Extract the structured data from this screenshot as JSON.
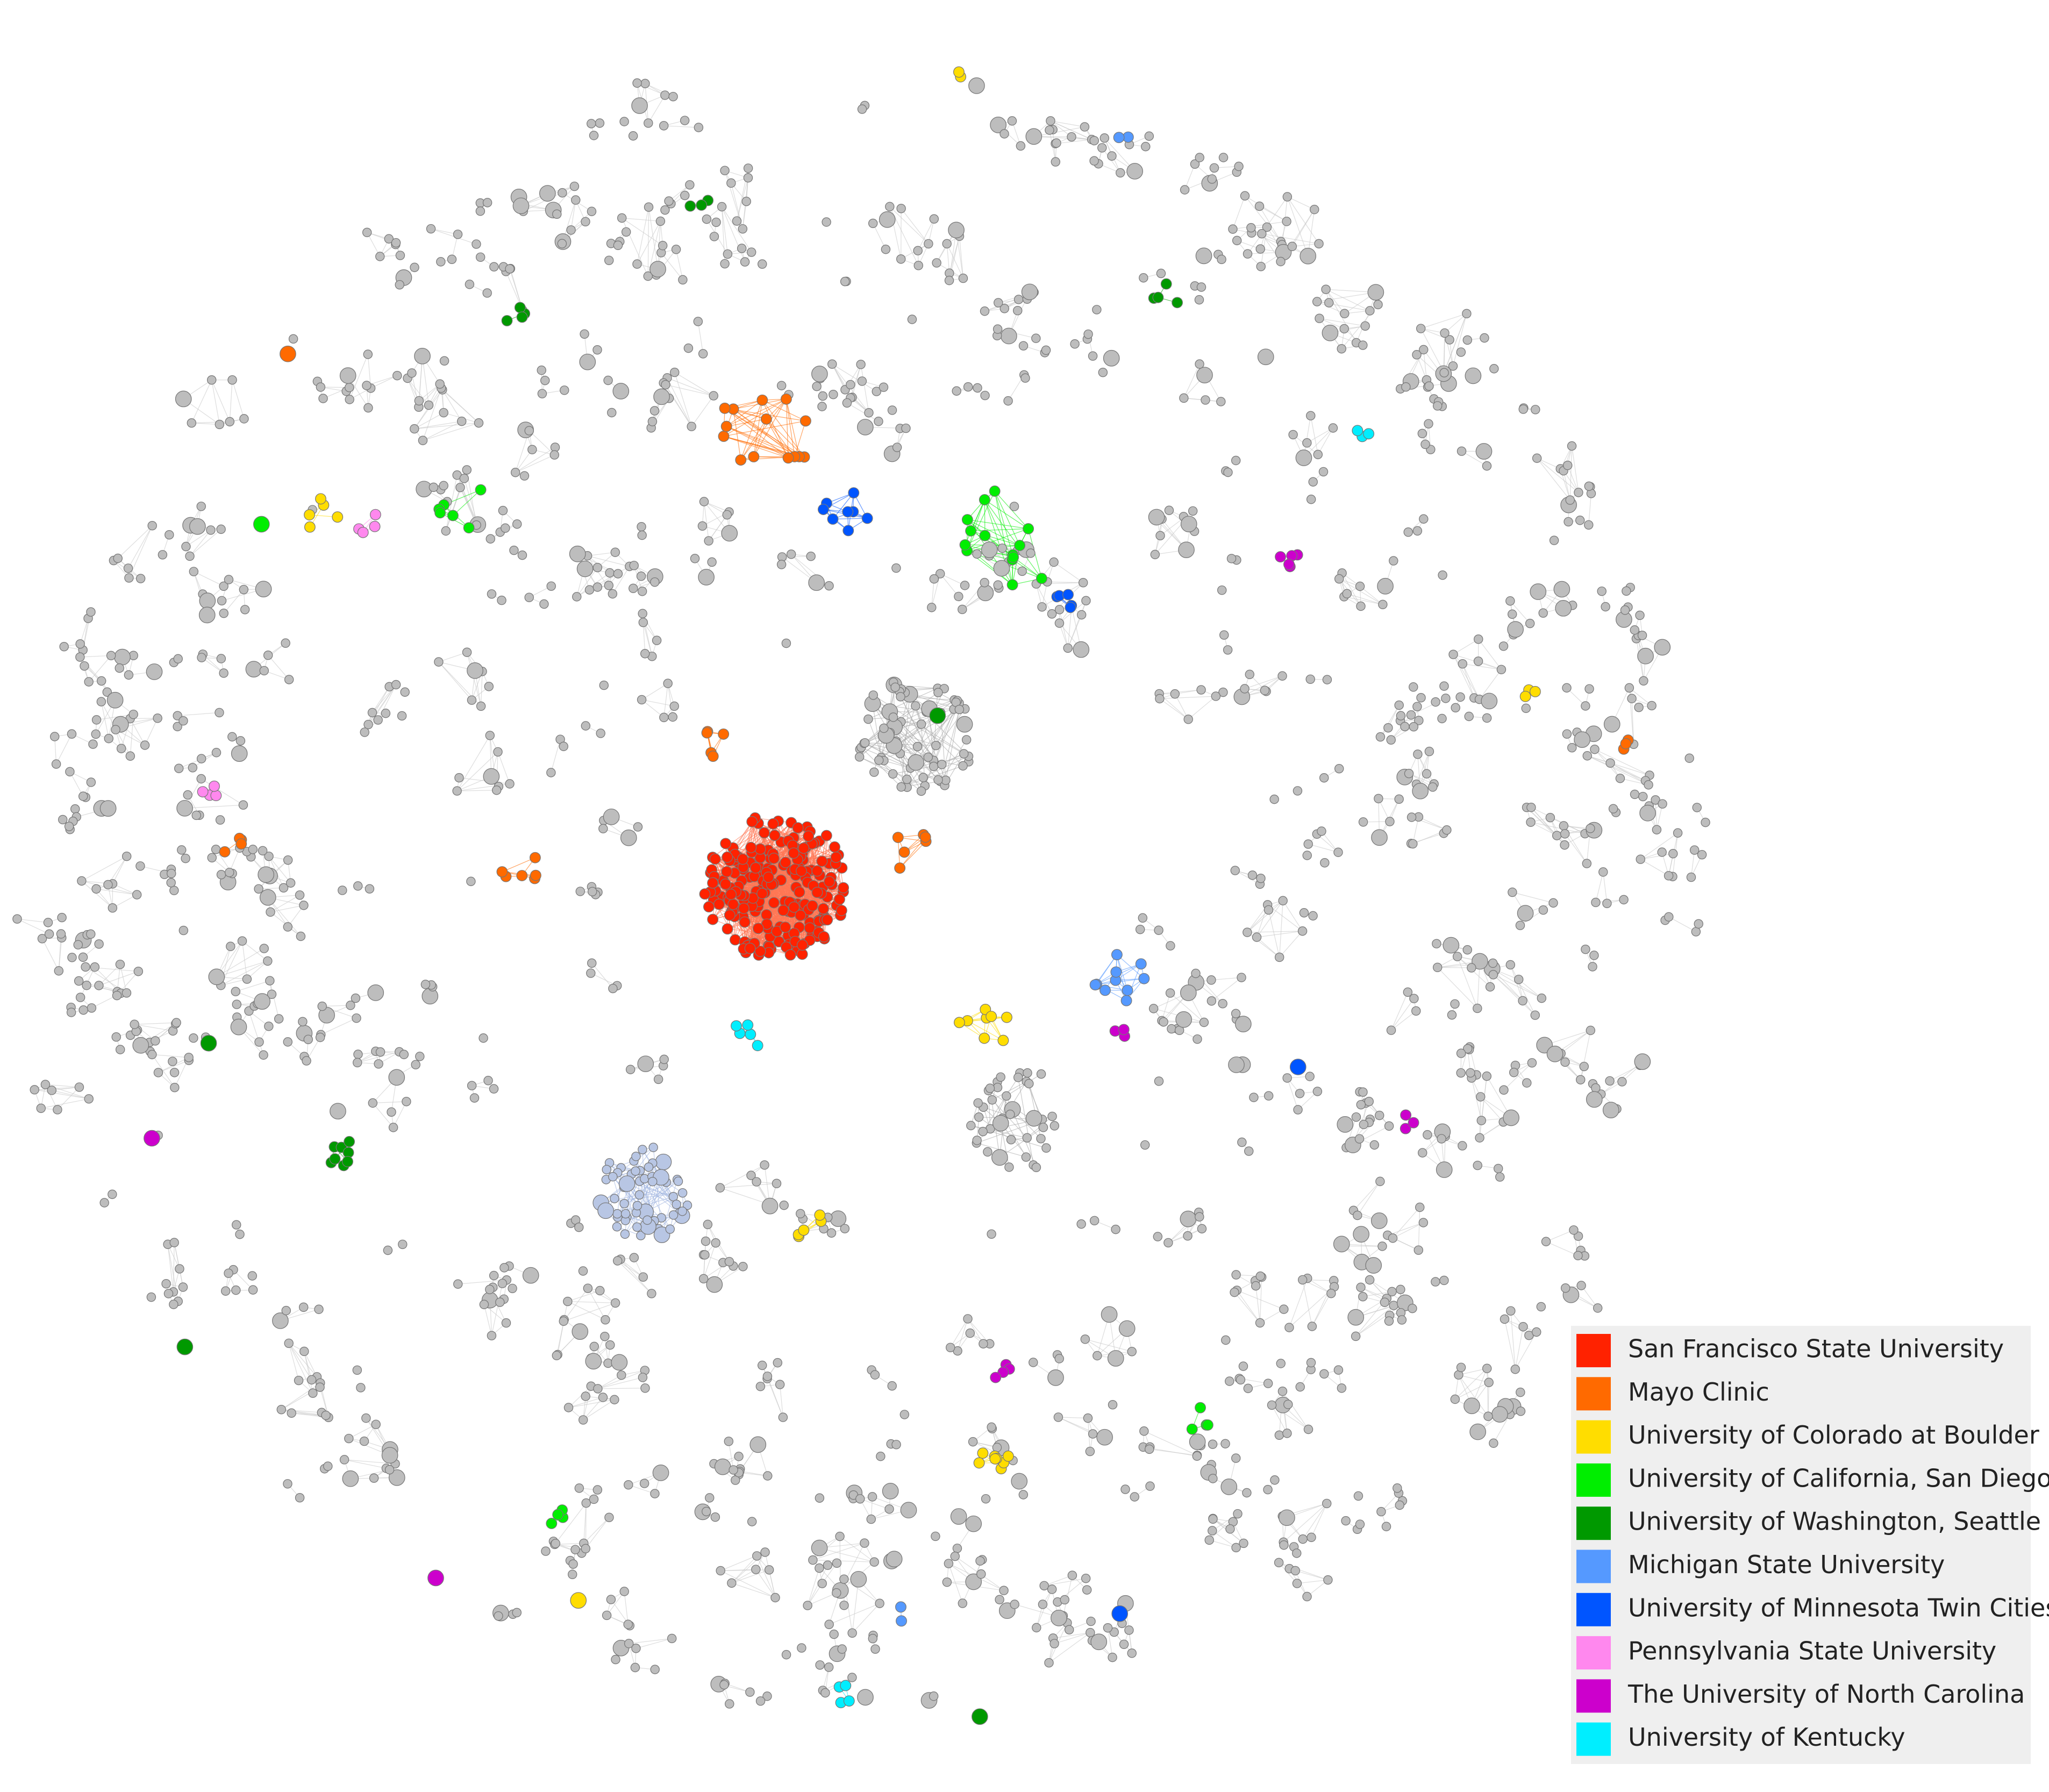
{
  "legend": {
    "entries": [
      {
        "label": "San Francisco State University",
        "color": "#ff2200"
      },
      {
        "label": "Mayo Clinic",
        "color": "#ff6a00"
      },
      {
        "label": "University of Colorado at Boulder",
        "color": "#ffdd00"
      },
      {
        "label": "University of California, San Diego",
        "color": "#00ee00"
      },
      {
        "label": "University of Washington, Seattle",
        "color": "#009900"
      },
      {
        "label": "Michigan State University",
        "color": "#5599ff"
      },
      {
        "label": "University of Minnesota Twin Cities",
        "color": "#0055ff"
      },
      {
        "label": "Pennsylvania State University",
        "color": "#ff88ee"
      },
      {
        "label": "The University of North Carolina",
        "color": "#cc00cc"
      },
      {
        "label": "University of Kentucky",
        "color": "#00eeff"
      }
    ]
  }
}
